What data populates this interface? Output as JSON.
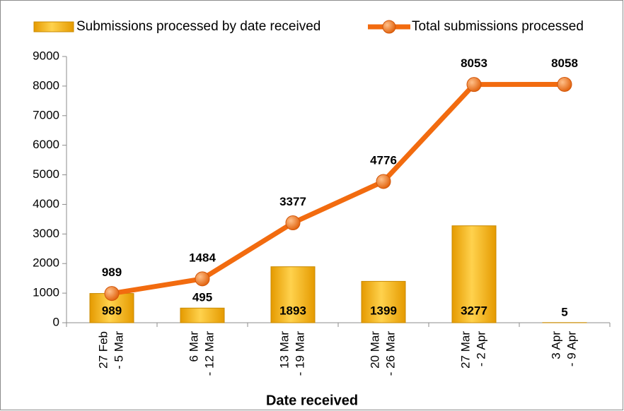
{
  "chart_data": {
    "type": "combo",
    "xlabel": "Date received",
    "categories": [
      [
        "27 Feb",
        "- 5 Mar"
      ],
      [
        "6 Mar",
        "- 12 Mar"
      ],
      [
        "13 Mar",
        "- 19 Mar"
      ],
      [
        "20 Mar",
        "- 26 Mar"
      ],
      [
        "27 Mar",
        "- 2 Apr"
      ],
      [
        "3 Apr",
        "- 9 Apr"
      ]
    ],
    "series": [
      {
        "name": "Submissions processed by date received",
        "type": "bar",
        "color": "#f5b300",
        "values": [
          989,
          495,
          1893,
          1399,
          3277,
          5
        ]
      },
      {
        "name": "Total submissions processed",
        "type": "line",
        "color": "#f26b0f",
        "values": [
          989,
          1484,
          3377,
          4776,
          8053,
          8058
        ]
      }
    ],
    "ylim": [
      0,
      9000
    ],
    "yticks": [
      0,
      1000,
      2000,
      3000,
      4000,
      5000,
      6000,
      7000,
      8000,
      9000
    ],
    "legend": "top"
  }
}
